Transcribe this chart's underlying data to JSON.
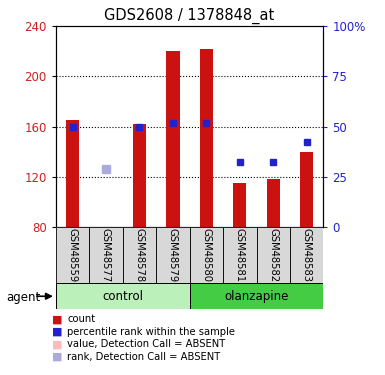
{
  "title": "GDS2608 / 1378848_at",
  "samples": [
    "GSM48559",
    "GSM48577",
    "GSM48578",
    "GSM48579",
    "GSM48580",
    "GSM48581",
    "GSM48582",
    "GSM48583"
  ],
  "red_values": [
    165,
    80,
    162,
    220,
    222,
    115,
    118,
    140
  ],
  "blue_values": [
    160,
    null,
    160,
    163,
    163,
    132,
    132,
    148
  ],
  "absent_rank_values": [
    null,
    126,
    null,
    null,
    null,
    null,
    null,
    null
  ],
  "absent_val_values": [
    null,
    null,
    null,
    null,
    null,
    null,
    null,
    null
  ],
  "ylim": [
    80,
    240
  ],
  "y_ticks_left": [
    80,
    120,
    160,
    200,
    240
  ],
  "y_ticks_right_labels": [
    "0",
    "25",
    "50",
    "75",
    "100%"
  ],
  "y_ticks_right_values": [
    80,
    120,
    160,
    200,
    240
  ],
  "control_color": "#bbf0bb",
  "olanzapine_color": "#44cc44",
  "bar_color": "#cc1111",
  "blue_color": "#2222cc",
  "absent_val_color": "#ffbbbb",
  "absent_rank_color": "#aaaadd",
  "sample_bg_color": "#d8d8d8",
  "left_label_color": "#cc2222",
  "right_label_color": "#2222cc",
  "n_control": 4,
  "n_olanzapine": 4
}
